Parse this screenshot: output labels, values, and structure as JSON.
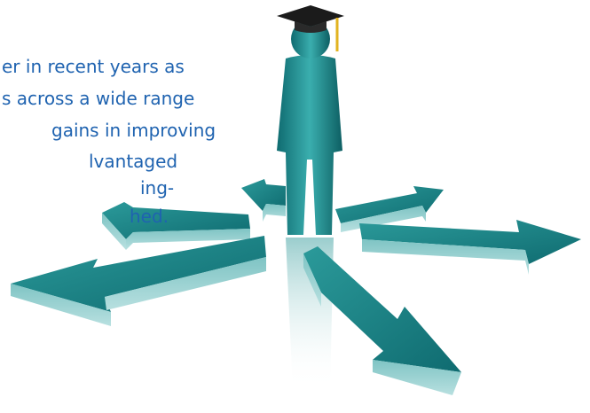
{
  "text_lines": [
    "er in recent years as",
    "s across a wide range",
    "gains in improving",
    "lvantaged",
    "ing-",
    "hed."
  ]
}
